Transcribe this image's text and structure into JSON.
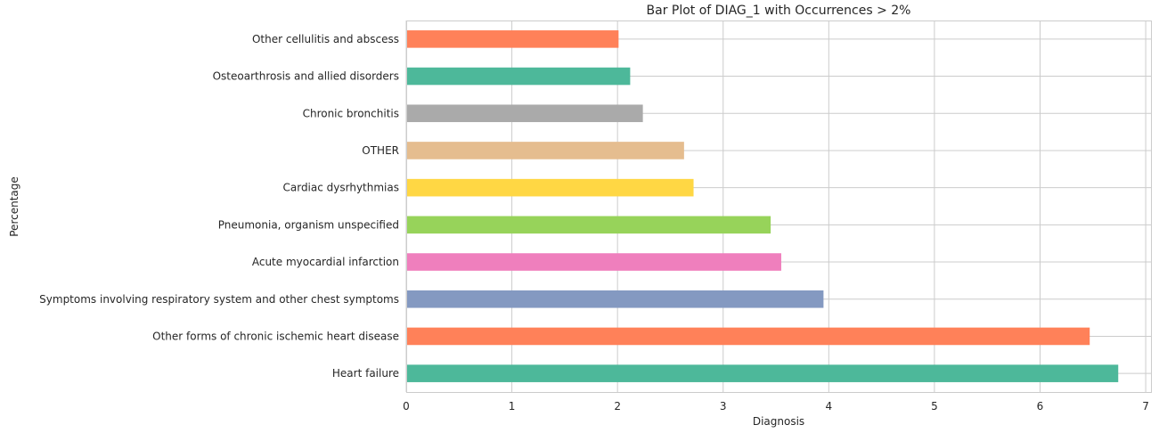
{
  "chart_data": {
    "type": "bar",
    "orientation": "horizontal",
    "title": "Bar Plot of DIAG_1 with Occurrences > 2%",
    "xlabel": "Diagnosis",
    "ylabel": "Percentage",
    "xlim": [
      0,
      7.05
    ],
    "xticks": [
      "0",
      "1",
      "2",
      "3",
      "4",
      "5",
      "6",
      "7"
    ],
    "grid": true,
    "categories": [
      "Heart failure",
      "Other forms of chronic ischemic heart disease",
      "Symptoms involving respiratory system and other chest symptoms",
      "Acute myocardial infarction",
      "Pneumonia, organism unspecified",
      "Cardiac dysrhythmias",
      "OTHER",
      "Chronic bronchitis",
      "Osteoarthrosis and allied disorders",
      "Other cellulitis and abscess"
    ],
    "values": [
      6.74,
      6.47,
      3.95,
      3.55,
      3.45,
      2.72,
      2.63,
      2.24,
      2.12,
      2.01
    ],
    "colors": [
      "#4db89a",
      "#ff8159",
      "#8499c1",
      "#ef7fbd",
      "#97d35a",
      "#ffd744",
      "#e5bd8f",
      "#aaaaaa",
      "#4db89a",
      "#ff8159"
    ]
  }
}
